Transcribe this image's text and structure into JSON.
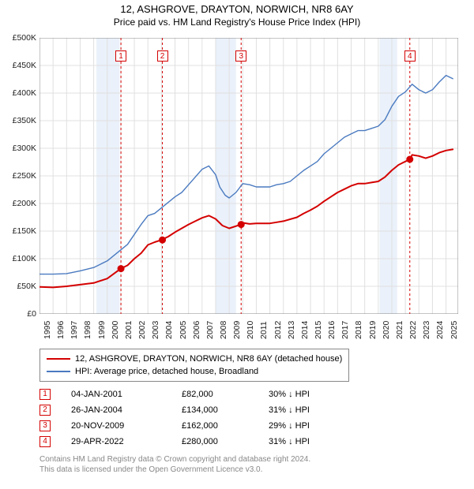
{
  "title": {
    "line1": "12, ASHGROVE, DRAYTON, NORWICH, NR8 6AY",
    "line2": "Price paid vs. HM Land Registry's House Price Index (HPI)"
  },
  "colors": {
    "property_line": "#d40000",
    "hpi_line": "#4a7ac0",
    "grid": "#e0e0e0",
    "axis": "#888888",
    "shade": "#eaf1fa",
    "marker_border": "#d40000",
    "marker_fill": "#d40000",
    "footer_text": "#888888"
  },
  "chart": {
    "type": "line",
    "x_domain": [
      1995,
      2025.9
    ],
    "y_domain": [
      0,
      500
    ],
    "y_ticks": [
      0,
      50,
      100,
      150,
      200,
      250,
      300,
      350,
      400,
      450,
      500
    ],
    "y_tick_labels": [
      "£0",
      "£50K",
      "£100K",
      "£150K",
      "£200K",
      "£250K",
      "£300K",
      "£350K",
      "£400K",
      "£450K",
      "£500K"
    ],
    "x_ticks": [
      1995,
      1996,
      1997,
      1998,
      1999,
      2000,
      2001,
      2002,
      2003,
      2004,
      2005,
      2006,
      2007,
      2008,
      2009,
      2010,
      2011,
      2012,
      2013,
      2014,
      2015,
      2016,
      2017,
      2018,
      2019,
      2020,
      2021,
      2022,
      2023,
      2024,
      2025
    ],
    "shaded_bands": [
      {
        "from": 1999.2,
        "to": 2000.9
      },
      {
        "from": 2008.0,
        "to": 2009.5
      },
      {
        "from": 2020.1,
        "to": 2021.4
      }
    ],
    "series": {
      "property": {
        "label": "12, ASHGROVE, DRAYTON, NORWICH, NR8 6AY (detached house)",
        "color": "#d40000",
        "width": 2,
        "points": [
          [
            1995,
            49
          ],
          [
            1996,
            48
          ],
          [
            1997,
            50
          ],
          [
            1998,
            53
          ],
          [
            1999,
            56
          ],
          [
            2000,
            64
          ],
          [
            2001,
            82
          ],
          [
            2001.5,
            88
          ],
          [
            2002,
            100
          ],
          [
            2002.5,
            110
          ],
          [
            2003,
            125
          ],
          [
            2003.5,
            130
          ],
          [
            2004,
            134
          ],
          [
            2004.5,
            140
          ],
          [
            2005,
            148
          ],
          [
            2005.5,
            155
          ],
          [
            2006,
            162
          ],
          [
            2006.5,
            168
          ],
          [
            2007,
            174
          ],
          [
            2007.5,
            178
          ],
          [
            2008,
            172
          ],
          [
            2008.5,
            160
          ],
          [
            2009,
            155
          ],
          [
            2009.88,
            162
          ],
          [
            2010,
            165
          ],
          [
            2010.5,
            163
          ],
          [
            2011,
            164
          ],
          [
            2012,
            164
          ],
          [
            2012.5,
            166
          ],
          [
            2013,
            168
          ],
          [
            2014,
            175
          ],
          [
            2014.5,
            182
          ],
          [
            2015,
            188
          ],
          [
            2015.5,
            195
          ],
          [
            2016,
            204
          ],
          [
            2016.5,
            212
          ],
          [
            2017,
            220
          ],
          [
            2017.5,
            226
          ],
          [
            2018,
            232
          ],
          [
            2018.5,
            236
          ],
          [
            2019,
            236
          ],
          [
            2019.5,
            238
          ],
          [
            2020,
            240
          ],
          [
            2020.5,
            248
          ],
          [
            2021,
            260
          ],
          [
            2021.5,
            270
          ],
          [
            2022.33,
            280
          ],
          [
            2022.5,
            288
          ],
          [
            2023,
            286
          ],
          [
            2023.5,
            282
          ],
          [
            2024,
            286
          ],
          [
            2024.5,
            292
          ],
          [
            2025,
            296
          ],
          [
            2025.5,
            298
          ]
        ]
      },
      "hpi": {
        "label": "HPI: Average price, detached house, Broadland",
        "color": "#4a7ac0",
        "width": 1.4,
        "points": [
          [
            1995,
            72
          ],
          [
            1996,
            72
          ],
          [
            1997,
            73
          ],
          [
            1998,
            78
          ],
          [
            1999,
            84
          ],
          [
            2000,
            96
          ],
          [
            2000.5,
            106
          ],
          [
            2001,
            116
          ],
          [
            2001.5,
            126
          ],
          [
            2002,
            144
          ],
          [
            2002.5,
            162
          ],
          [
            2003,
            178
          ],
          [
            2003.5,
            182
          ],
          [
            2004,
            192
          ],
          [
            2004.5,
            202
          ],
          [
            2005,
            212
          ],
          [
            2005.5,
            220
          ],
          [
            2006,
            234
          ],
          [
            2006.5,
            248
          ],
          [
            2007,
            262
          ],
          [
            2007.5,
            268
          ],
          [
            2008,
            252
          ],
          [
            2008.3,
            230
          ],
          [
            2008.7,
            215
          ],
          [
            2009,
            210
          ],
          [
            2009.5,
            220
          ],
          [
            2010,
            236
          ],
          [
            2010.5,
            234
          ],
          [
            2011,
            230
          ],
          [
            2012,
            230
          ],
          [
            2012.5,
            234
          ],
          [
            2013,
            236
          ],
          [
            2013.5,
            240
          ],
          [
            2014,
            250
          ],
          [
            2014.5,
            260
          ],
          [
            2015,
            268
          ],
          [
            2015.5,
            276
          ],
          [
            2016,
            290
          ],
          [
            2016.5,
            300
          ],
          [
            2017,
            310
          ],
          [
            2017.5,
            320
          ],
          [
            2018,
            326
          ],
          [
            2018.5,
            332
          ],
          [
            2019,
            332
          ],
          [
            2019.5,
            336
          ],
          [
            2020,
            340
          ],
          [
            2020.5,
            352
          ],
          [
            2021,
            376
          ],
          [
            2021.5,
            394
          ],
          [
            2022,
            402
          ],
          [
            2022.5,
            416
          ],
          [
            2023,
            406
          ],
          [
            2023.5,
            400
          ],
          [
            2024,
            406
          ],
          [
            2024.5,
            420
          ],
          [
            2025,
            432
          ],
          [
            2025.5,
            426
          ]
        ]
      }
    },
    "sale_markers": [
      {
        "n": "1",
        "x": 2001.01
      },
      {
        "n": "2",
        "x": 2004.07
      },
      {
        "n": "3",
        "x": 2009.88
      },
      {
        "n": "4",
        "x": 2022.33
      }
    ],
    "sale_points": [
      {
        "x": 2001.01,
        "y": 82
      },
      {
        "x": 2004.07,
        "y": 134
      },
      {
        "x": 2009.88,
        "y": 162
      },
      {
        "x": 2022.33,
        "y": 280
      }
    ]
  },
  "legend": {
    "items": [
      {
        "color": "#d40000",
        "label": "12, ASHGROVE, DRAYTON, NORWICH, NR8 6AY (detached house)"
      },
      {
        "color": "#4a7ac0",
        "label": "HPI: Average price, detached house, Broadland"
      }
    ]
  },
  "sales_table": [
    {
      "n": "1",
      "date": "04-JAN-2001",
      "price": "£82,000",
      "vs": "30% ↓ HPI"
    },
    {
      "n": "2",
      "date": "26-JAN-2004",
      "price": "£134,000",
      "vs": "31% ↓ HPI"
    },
    {
      "n": "3",
      "date": "20-NOV-2009",
      "price": "£162,000",
      "vs": "29% ↓ HPI"
    },
    {
      "n": "4",
      "date": "29-APR-2022",
      "price": "£280,000",
      "vs": "31% ↓ HPI"
    }
  ],
  "footer": {
    "line1": "Contains HM Land Registry data © Crown copyright and database right 2024.",
    "line2": "This data is licensed under the Open Government Licence v3.0."
  }
}
